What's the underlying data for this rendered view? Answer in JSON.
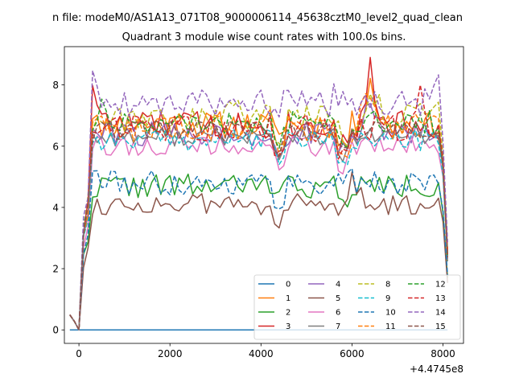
{
  "chart_data": {
    "type": "line",
    "suptitle": "n file: modeM0/AS1A13_071T08_9000006114_45638cztM0_level2_quad_clean",
    "title": "Quadrant 3 module wise count rates with 100.0s bins.",
    "xlabel": "",
    "ylabel": "",
    "x_offset_label": "+4.4745e8",
    "xlim": [
      -320,
      8450
    ],
    "ylim": [
      -0.44,
      9.25
    ],
    "xticks": [
      0,
      2000,
      4000,
      6000,
      8000
    ],
    "xtick_labels": [
      "0",
      "2000",
      "4000",
      "6000",
      "8000"
    ],
    "yticks": [
      0,
      2,
      4,
      6,
      8
    ],
    "ytick_labels": [
      "0",
      "2",
      "4",
      "6",
      "8"
    ],
    "grid": false,
    "legend_position": "lower-right",
    "x_start": -200,
    "x_step": 100,
    "n_points": 84,
    "series": [
      {
        "name": "0",
        "color": "#1f77b4",
        "dash": "solid",
        "constant": 0
      },
      {
        "name": "1",
        "color": "#ff7f0e",
        "dash": "solid",
        "base": 6.7,
        "amp": 0.45,
        "seed": 11,
        "peaks": [
          [
            4400,
            0.5
          ],
          [
            6400,
            1.5
          ]
        ]
      },
      {
        "name": "2",
        "color": "#2ca02c",
        "dash": "solid",
        "base": 4.7,
        "amp": 0.4,
        "seed": 22,
        "peaks": [
          [
            4400,
            0.6
          ]
        ]
      },
      {
        "name": "3",
        "color": "#d62728",
        "dash": "solid",
        "base": 6.7,
        "amp": 0.5,
        "seed": 33,
        "peaks": [
          [
            300,
            1.4
          ],
          [
            6400,
            1.7
          ]
        ]
      },
      {
        "name": "4",
        "color": "#9467bd",
        "dash": "solid",
        "base": 6.4,
        "amp": 0.4,
        "seed": 44,
        "peaks": [
          [
            6400,
            1.2
          ]
        ]
      },
      {
        "name": "5",
        "color": "#8c564b",
        "dash": "solid",
        "base": 4.1,
        "amp": 0.35,
        "seed": 55,
        "peaks": [
          [
            6000,
            1.0
          ]
        ]
      },
      {
        "name": "6",
        "color": "#e377c2",
        "dash": "solid",
        "base": 6.0,
        "amp": 0.35,
        "seed": 66,
        "peaks": []
      },
      {
        "name": "7",
        "color": "#7f7f7f",
        "dash": "solid",
        "base": 6.3,
        "amp": 0.3,
        "seed": 77,
        "peaks": []
      },
      {
        "name": "8",
        "color": "#bcbd22",
        "dash": "dashed",
        "base": 7.0,
        "amp": 0.5,
        "seed": 88,
        "peaks": [
          [
            6400,
            1.0
          ]
        ]
      },
      {
        "name": "9",
        "color": "#17becf",
        "dash": "dashed",
        "base": 6.2,
        "amp": 0.35,
        "seed": 99,
        "peaks": []
      },
      {
        "name": "10",
        "color": "#1f77b4",
        "dash": "dashed",
        "base": 4.8,
        "amp": 0.4,
        "seed": 111,
        "peaks": [
          [
            300,
            0.5
          ],
          [
            5800,
            0.9
          ]
        ]
      },
      {
        "name": "11",
        "color": "#ff7f0e",
        "dash": "dashed",
        "base": 6.6,
        "amp": 0.45,
        "seed": 122,
        "peaks": [
          [
            6300,
            1.5
          ]
        ]
      },
      {
        "name": "12",
        "color": "#2ca02c",
        "dash": "dashed",
        "base": 6.8,
        "amp": 0.4,
        "seed": 133,
        "peaks": [
          [
            500,
            0.6
          ]
        ]
      },
      {
        "name": "13",
        "color": "#d62728",
        "dash": "dashed",
        "base": 6.6,
        "amp": 0.45,
        "seed": 144,
        "peaks": [
          [
            7500,
            1.0
          ]
        ]
      },
      {
        "name": "14",
        "color": "#9467bd",
        "dash": "dashed",
        "base": 7.4,
        "amp": 0.45,
        "seed": 155,
        "peaks": [
          [
            300,
            0.9
          ],
          [
            4500,
            0.8
          ],
          [
            5800,
            1.0
          ],
          [
            7800,
            0.8
          ]
        ]
      },
      {
        "name": "15",
        "color": "#8c564b",
        "dash": "dashed",
        "base": 6.5,
        "amp": 0.35,
        "seed": 166,
        "peaks": []
      }
    ]
  }
}
